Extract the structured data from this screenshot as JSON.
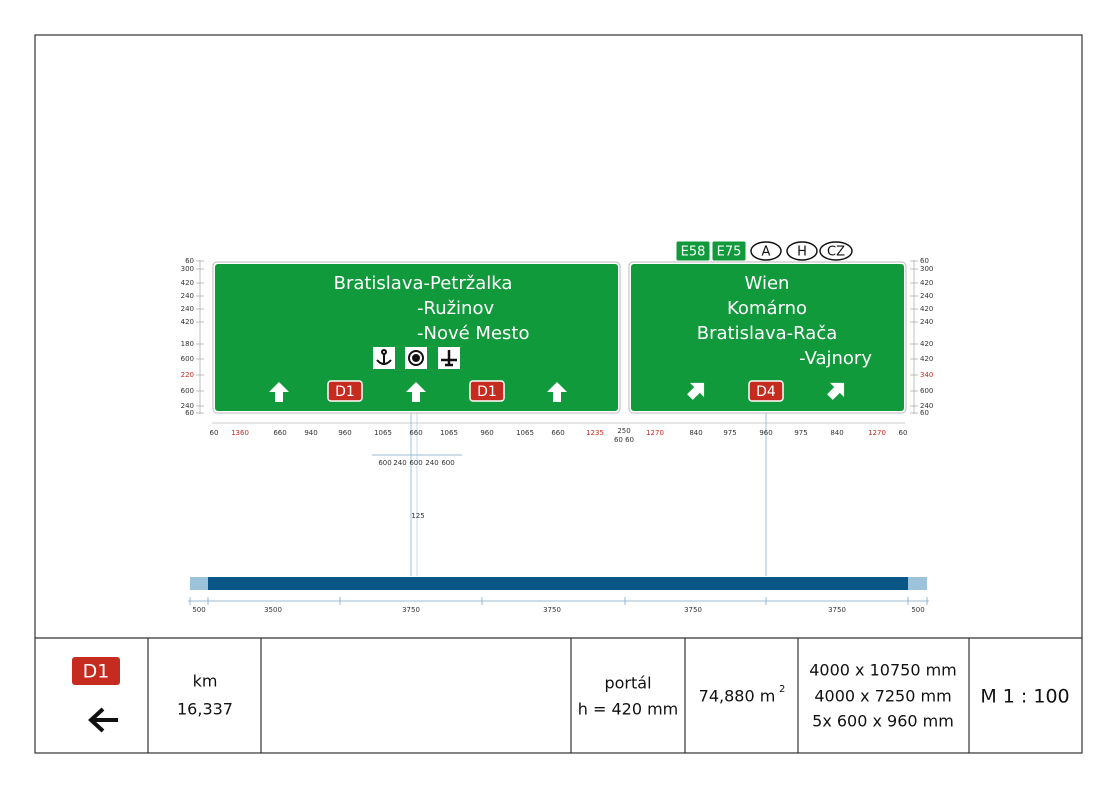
{
  "portal": {
    "badges": [
      "E58",
      "E75",
      "A",
      "H",
      "CZ"
    ],
    "sign_left": {
      "lines": [
        "Bratislava-Petržalka",
        "-Ružinov",
        "-Nové Mesto"
      ],
      "routes": [
        "D1",
        "D1"
      ]
    },
    "sign_right": {
      "lines": [
        "Wien",
        "Komárno",
        "Bratislava-Rača",
        "-Vajnory"
      ],
      "routes": [
        "D4"
      ]
    },
    "dims_left": [
      60,
      300,
      420,
      240,
      240,
      420,
      180,
      600,
      220,
      600,
      240,
      60
    ],
    "dims_right": [
      60,
      300,
      420,
      240,
      420,
      240,
      420,
      420,
      340,
      600,
      240,
      60
    ],
    "dims_bottom_left": [
      60,
      1360,
      660,
      940,
      960,
      1065,
      660,
      1065,
      960,
      1065,
      660,
      1235,
      250,
      "60 60"
    ],
    "dims_bottom_right": [
      1270,
      840,
      975,
      960,
      975,
      840,
      1270,
      60
    ],
    "dims_symbols": [
      600,
      240,
      600,
      240,
      600
    ],
    "post_offset": 125,
    "dims_span": [
      500,
      3500,
      3750,
      3750,
      3750,
      3750,
      500
    ]
  },
  "table": {
    "route": "D1",
    "km_label": "km",
    "km": "16,337",
    "portal": "portál",
    "height": "h = 420 mm",
    "area": "74,880 m",
    "area_exp": "2",
    "sizes": [
      "4000 x 10750 mm",
      "4000 x 7250 mm",
      "5x 600 x 960 mm"
    ],
    "scale": "M 1 : 100"
  }
}
